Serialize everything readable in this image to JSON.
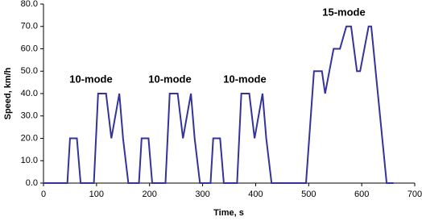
{
  "chart_data": {
    "type": "line",
    "xlabel": "Time, s",
    "ylabel": "Speed, km/h",
    "annotations": [
      "10-mode",
      "10-mode",
      "10-mode",
      "15-mode"
    ],
    "x": [
      0,
      45,
      50,
      63,
      70,
      95,
      103,
      118,
      128,
      143,
      150,
      160,
      180,
      185,
      198,
      205,
      230,
      238,
      253,
      263,
      278,
      285,
      295,
      315,
      320,
      333,
      340,
      365,
      373,
      388,
      398,
      413,
      420,
      430,
      495,
      510,
      525,
      531,
      547,
      559,
      571,
      580,
      591,
      597,
      613,
      618,
      647,
      660
    ],
    "values": [
      0,
      0,
      20,
      20,
      0,
      0,
      40,
      40,
      20,
      40,
      20,
      0,
      0,
      20,
      20,
      0,
      0,
      40,
      40,
      20,
      40,
      20,
      0,
      0,
      20,
      20,
      0,
      0,
      40,
      40,
      20,
      40,
      20,
      0,
      0,
      50,
      50,
      40,
      60,
      60,
      70,
      70,
      50,
      50,
      70,
      70,
      0,
      0
    ],
    "color": "#333399",
    "xlim": [
      0,
      700
    ],
    "xticks": [
      0,
      100,
      200,
      300,
      400,
      500,
      600,
      700
    ],
    "ylim": [
      0,
      80
    ],
    "yticks": [
      {
        "value": 0,
        "label": "0.0"
      },
      {
        "value": 10,
        "label": "10.0"
      },
      {
        "value": 20,
        "label": "20.0"
      },
      {
        "value": 30,
        "label": "30.0"
      },
      {
        "value": 40,
        "label": "40.0"
      },
      {
        "value": 50,
        "label": "50.0"
      },
      {
        "value": 60,
        "label": "60.0"
      },
      {
        "value": 70,
        "label": "70.0"
      },
      {
        "value": 80,
        "label": "80.0"
      }
    ]
  }
}
